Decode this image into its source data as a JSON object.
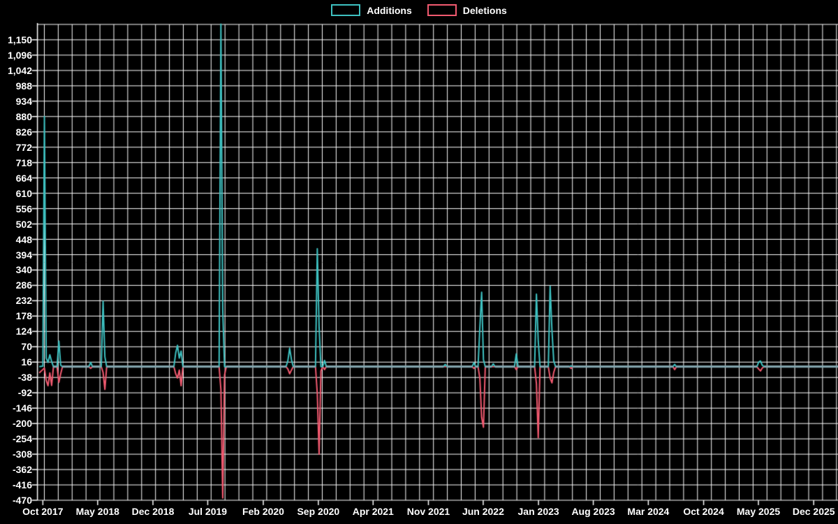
{
  "colors": {
    "background": "#000000",
    "grid": "#ffffff",
    "text": "#ffffff",
    "additions": "#3ec1c1",
    "deletions": "#f25a70",
    "baseline": "#84a7b0"
  },
  "chart_data": {
    "type": "line",
    "title": "",
    "legend_position": "top",
    "grid": true,
    "background": "#000000",
    "x_axis": {
      "start": "2017-09-10",
      "end": "2026-03-05",
      "ticks": [
        {
          "label": "Oct 2017",
          "date": "2017-10-01"
        },
        {
          "label": "May 2018",
          "date": "2018-05-01"
        },
        {
          "label": "Dec 2018",
          "date": "2018-12-01"
        },
        {
          "label": "Jul 2019",
          "date": "2019-07-01"
        },
        {
          "label": "Feb 2020",
          "date": "2020-02-01"
        },
        {
          "label": "Sep 2020",
          "date": "2020-09-01"
        },
        {
          "label": "Apr 2021",
          "date": "2021-04-01"
        },
        {
          "label": "Nov 2021",
          "date": "2021-11-01"
        },
        {
          "label": "Jun 2022",
          "date": "2022-06-01"
        },
        {
          "label": "Jan 2023",
          "date": "2023-01-01"
        },
        {
          "label": "Aug 2023",
          "date": "2023-08-01"
        },
        {
          "label": "Mar 2024",
          "date": "2024-03-01"
        },
        {
          "label": "Oct 2024",
          "date": "2024-10-01"
        },
        {
          "label": "May 2025",
          "date": "2025-05-01"
        },
        {
          "label": "Dec 2025",
          "date": "2025-12-01"
        }
      ]
    },
    "y_axis": {
      "min": -470,
      "max": 1204,
      "ticks": [
        {
          "v": 1150,
          "label": "1,150"
        },
        {
          "v": 1096,
          "label": "1,096"
        },
        {
          "v": 1042,
          "label": "1,042"
        },
        {
          "v": 988,
          "label": "988"
        },
        {
          "v": 934,
          "label": "934"
        },
        {
          "v": 880,
          "label": "880"
        },
        {
          "v": 826,
          "label": "826"
        },
        {
          "v": 772,
          "label": "772"
        },
        {
          "v": 718,
          "label": "718"
        },
        {
          "v": 664,
          "label": "664"
        },
        {
          "v": 610,
          "label": "610"
        },
        {
          "v": 556,
          "label": "556"
        },
        {
          "v": 502,
          "label": "502"
        },
        {
          "v": 448,
          "label": "448"
        },
        {
          "v": 394,
          "label": "394"
        },
        {
          "v": 340,
          "label": "340"
        },
        {
          "v": 286,
          "label": "286"
        },
        {
          "v": 232,
          "label": "232"
        },
        {
          "v": 178,
          "label": "178"
        },
        {
          "v": 124,
          "label": "124"
        },
        {
          "v": 70,
          "label": "70"
        },
        {
          "v": 16,
          "label": "16"
        },
        {
          "v": -38,
          "label": "-38"
        },
        {
          "v": -92,
          "label": "-92"
        },
        {
          "v": -146,
          "label": "-146"
        },
        {
          "v": -200,
          "label": "-200"
        },
        {
          "v": -254,
          "label": "-254"
        },
        {
          "v": -308,
          "label": "-308"
        },
        {
          "v": -362,
          "label": "-362"
        },
        {
          "v": -416,
          "label": "-416"
        },
        {
          "v": -470,
          "label": "-470"
        }
      ]
    },
    "series": [
      {
        "name": "Additions",
        "color": "#3ec1c1"
      },
      {
        "name": "Deletions",
        "color": "#f25a70"
      }
    ],
    "points": [
      [
        "2017-09-17",
        0,
        -22
      ],
      [
        "2017-10-01",
        2,
        -10
      ],
      [
        "2017-10-07",
        880,
        -5
      ],
      [
        "2017-10-14",
        30,
        -48
      ],
      [
        "2017-10-21",
        15,
        -67
      ],
      [
        "2017-10-28",
        42,
        -22
      ],
      [
        "2017-11-04",
        18,
        -66
      ],
      [
        "2017-11-11",
        0,
        0
      ],
      [
        "2017-11-25",
        0,
        0
      ],
      [
        "2017-12-02",
        90,
        -55
      ],
      [
        "2017-12-09",
        5,
        -25
      ],
      [
        "2017-12-16",
        0,
        0
      ],
      [
        "2018-03-28",
        0,
        0
      ],
      [
        "2018-04-04",
        15,
        -6
      ],
      [
        "2018-04-11",
        0,
        0
      ],
      [
        "2018-05-15",
        0,
        0
      ],
      [
        "2018-05-22",
        230,
        -20
      ],
      [
        "2018-05-29",
        35,
        -80
      ],
      [
        "2018-06-05",
        0,
        0
      ],
      [
        "2019-02-20",
        0,
        0
      ],
      [
        "2019-02-27",
        48,
        -25
      ],
      [
        "2019-03-06",
        75,
        -40
      ],
      [
        "2019-03-13",
        30,
        -12
      ],
      [
        "2019-03-20",
        55,
        -67
      ],
      [
        "2019-03-27",
        0,
        0
      ],
      [
        "2019-08-14",
        0,
        0
      ],
      [
        "2019-08-21",
        1205,
        -80
      ],
      [
        "2019-08-28",
        200,
        -462
      ],
      [
        "2019-09-04",
        0,
        -30
      ],
      [
        "2019-09-11",
        0,
        0
      ],
      [
        "2020-04-29",
        0,
        0
      ],
      [
        "2020-05-06",
        20,
        -8
      ],
      [
        "2020-05-13",
        65,
        -25
      ],
      [
        "2020-05-20",
        25,
        -12
      ],
      [
        "2020-05-27",
        0,
        0
      ],
      [
        "2020-08-21",
        0,
        0
      ],
      [
        "2020-08-28",
        415,
        -95
      ],
      [
        "2020-09-04",
        140,
        -308
      ],
      [
        "2020-09-11",
        0,
        -15
      ],
      [
        "2020-09-18",
        0,
        0
      ],
      [
        "2020-09-25",
        22,
        -10
      ],
      [
        "2020-10-02",
        0,
        0
      ],
      [
        "2021-12-29",
        0,
        0
      ],
      [
        "2022-01-05",
        8,
        0
      ],
      [
        "2022-01-12",
        0,
        0
      ],
      [
        "2022-04-19",
        0,
        0
      ],
      [
        "2022-04-26",
        14,
        -6
      ],
      [
        "2022-05-03",
        0,
        0
      ],
      [
        "2022-05-12",
        0,
        0
      ],
      [
        "2022-05-19",
        135,
        -40
      ],
      [
        "2022-05-26",
        262,
        -178
      ],
      [
        "2022-06-02",
        25,
        -213
      ],
      [
        "2022-06-09",
        0,
        0
      ],
      [
        "2022-07-03",
        0,
        0
      ],
      [
        "2022-07-10",
        10,
        0
      ],
      [
        "2022-07-17",
        0,
        0
      ],
      [
        "2022-09-30",
        0,
        0
      ],
      [
        "2022-10-07",
        45,
        -10
      ],
      [
        "2022-10-14",
        0,
        0
      ],
      [
        "2022-12-17",
        0,
        0
      ],
      [
        "2022-12-24",
        255,
        -60
      ],
      [
        "2022-12-31",
        90,
        -250
      ],
      [
        "2023-01-07",
        0,
        0
      ],
      [
        "2023-02-08",
        0,
        0
      ],
      [
        "2023-02-15",
        283,
        -40
      ],
      [
        "2023-02-22",
        130,
        -57
      ],
      [
        "2023-03-01",
        20,
        -20
      ],
      [
        "2023-03-08",
        0,
        0
      ],
      [
        "2023-04-30",
        0,
        0
      ],
      [
        "2023-05-07",
        3,
        -6
      ],
      [
        "2023-05-14",
        0,
        0
      ],
      [
        "2024-06-04",
        0,
        0
      ],
      [
        "2024-06-11",
        8,
        -10
      ],
      [
        "2024-06-18",
        0,
        0
      ],
      [
        "2025-04-25",
        0,
        0
      ],
      [
        "2025-05-02",
        16,
        -8
      ],
      [
        "2025-05-09",
        20,
        -15
      ],
      [
        "2025-05-16",
        5,
        -5
      ],
      [
        "2025-05-23",
        0,
        0
      ],
      [
        "2026-03-05",
        0,
        0
      ]
    ]
  }
}
